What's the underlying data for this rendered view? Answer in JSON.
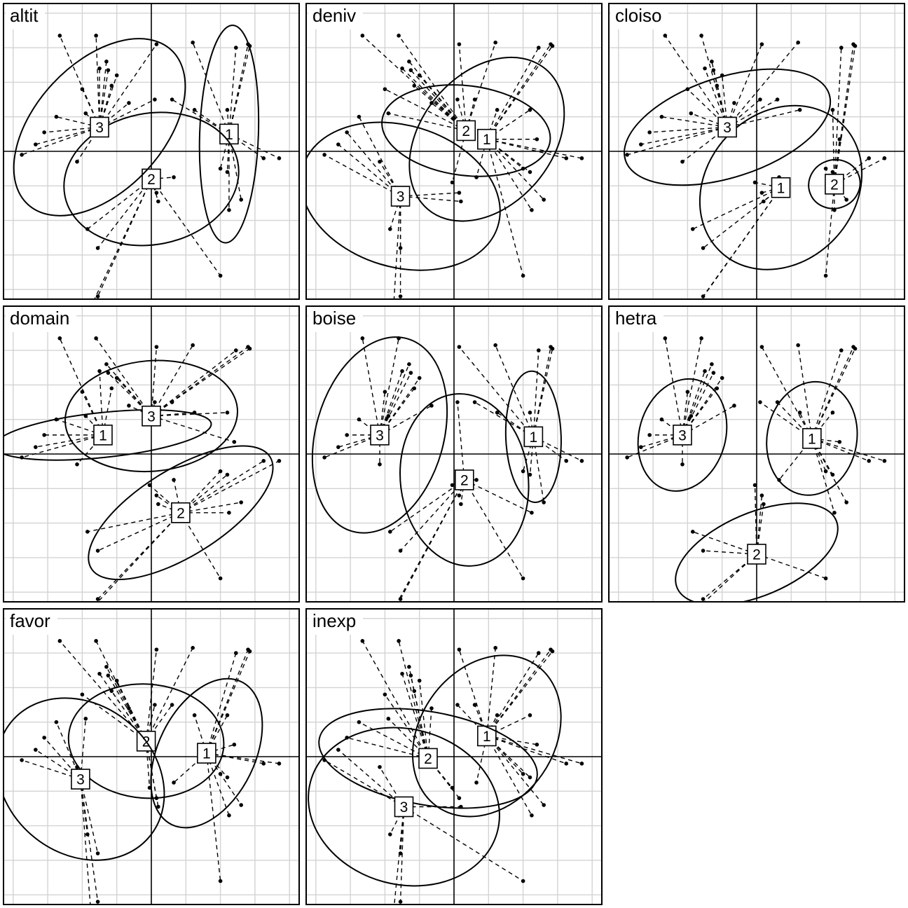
{
  "chart_data": {
    "type": "scatter",
    "x_range": [
      -8.6,
      8.6
    ],
    "y_range": [
      -8.6,
      8.6
    ],
    "grid": true,
    "grid_step": 2,
    "reference_lines": {
      "x": 0,
      "y": 0
    },
    "layout": "3x3 small multiples",
    "points": [
      [
        -3.2,
        6.7
      ],
      [
        -5.3,
        6.7
      ],
      [
        -2.6,
        5.2
      ],
      [
        -3,
        4.8
      ],
      [
        -2.5,
        4.7
      ],
      [
        -4,
        3.6
      ],
      [
        -2,
        4.4
      ],
      [
        2.4,
        6.3
      ],
      [
        0.3,
        6.2
      ],
      [
        4.9,
        6
      ],
      [
        5.6,
        6.2
      ],
      [
        5.7,
        6.1
      ],
      [
        -1.3,
        2.8
      ],
      [
        -2.3,
        3.8
      ],
      [
        -3.8,
        2.2
      ],
      [
        -5.5,
        2
      ],
      [
        -6.2,
        1.1
      ],
      [
        -6.7,
        0.4
      ],
      [
        -7.5,
        -0.2
      ],
      [
        -4.3,
        -0.6
      ],
      [
        0.2,
        3
      ],
      [
        1.2,
        3
      ],
      [
        2.5,
        2.4
      ],
      [
        4.4,
        2.4
      ],
      [
        4.8,
        0.7
      ],
      [
        4,
        -1
      ],
      [
        5.2,
        -2.8
      ],
      [
        4.5,
        -3.4
      ],
      [
        6.5,
        -0.4
      ],
      [
        7.4,
        -0.4
      ],
      [
        4.4,
        -1.2
      ],
      [
        -0.1,
        -1.8
      ],
      [
        1.3,
        -1.5
      ],
      [
        0.3,
        -2.4
      ],
      [
        0.4,
        -2.9
      ],
      [
        -3.7,
        -4.5
      ],
      [
        -3.1,
        -5.6
      ],
      [
        4,
        -7.2
      ],
      [
        -3.5,
        -9
      ],
      [
        -3.1,
        -8.4
      ]
    ],
    "panels": [
      {
        "title": "altit",
        "groups": [
          {
            "label": "1",
            "center": [
              4.5,
              1
            ],
            "ellipse": {
              "rx": 6.3,
              "ry": 1.7,
              "angle_deg": 88
            }
          },
          {
            "label": "2",
            "center": [
              0,
              -1.6
            ],
            "ellipse": {
              "rx": 5.1,
              "ry": 3.8,
              "angle_deg": 11
            }
          },
          {
            "label": "3",
            "center": [
              -3,
              1.4
            ],
            "ellipse": {
              "rx": 6.1,
              "ry": 3.7,
              "angle_deg": 47
            }
          }
        ]
      },
      {
        "title": "deniv",
        "groups": [
          {
            "label": "1",
            "center": [
              1.9,
              0.7
            ],
            "ellipse": {
              "rx": 5.3,
              "ry": 3.8,
              "angle_deg": 50
            }
          },
          {
            "label": "2",
            "center": [
              0.7,
              1.2
            ],
            "ellipse": {
              "rx": 4.9,
              "ry": 2.6,
              "angle_deg": -7
            }
          },
          {
            "label": "3",
            "center": [
              -3.1,
              -2.6
            ],
            "ellipse": {
              "rx": 5.9,
              "ry": 4.1,
              "angle_deg": -17
            }
          }
        ]
      },
      {
        "title": "cloiso",
        "groups": [
          {
            "label": "1",
            "center": [
              1.4,
              -2.1
            ],
            "ellipse": {
              "rx": 5.1,
              "ry": 4.3,
              "angle_deg": 47
            }
          },
          {
            "label": "2",
            "center": [
              4.5,
              -1.9
            ],
            "ellipse": {
              "rx": 1.5,
              "ry": 1.4,
              "angle_deg": 20
            }
          },
          {
            "label": "3",
            "center": [
              -1.7,
              1.4
            ],
            "ellipse": {
              "rx": 6.2,
              "ry": 2.9,
              "angle_deg": 18
            }
          }
        ]
      },
      {
        "title": "domain",
        "groups": [
          {
            "label": "1",
            "center": [
              -2.8,
              1.1
            ],
            "ellipse": {
              "rx": 6.3,
              "ry": 1.3,
              "angle_deg": 6
            }
          },
          {
            "label": "2",
            "center": [
              1.7,
              -3.4
            ],
            "ellipse": {
              "rx": 6.1,
              "ry": 2.5,
              "angle_deg": 32
            }
          },
          {
            "label": "3",
            "center": [
              0,
              2.2
            ],
            "ellipse": {
              "rx": 5,
              "ry": 3.2,
              "angle_deg": 5
            }
          }
        ]
      },
      {
        "title": "boise",
        "groups": [
          {
            "label": "1",
            "center": [
              4.6,
              1
            ],
            "ellipse": {
              "rx": 3.8,
              "ry": 1.6,
              "angle_deg": 92
            }
          },
          {
            "label": "2",
            "center": [
              0.6,
              -1.5
            ],
            "ellipse": {
              "rx": 5,
              "ry": 3.7,
              "angle_deg": 97
            }
          },
          {
            "label": "3",
            "center": [
              -4.3,
              1.1
            ],
            "ellipse": {
              "rx": 5.8,
              "ry": 3.7,
              "angle_deg": 74
            }
          }
        ]
      },
      {
        "title": "hetra",
        "groups": [
          {
            "label": "1",
            "center": [
              3.2,
              0.9
            ],
            "ellipse": {
              "rx": 3.3,
              "ry": 2.6,
              "angle_deg": 80
            }
          },
          {
            "label": "2",
            "center": [
              0,
              -5.8
            ],
            "ellipse": {
              "rx": 5,
              "ry": 2.4,
              "angle_deg": 23
            }
          },
          {
            "label": "3",
            "center": [
              -4.3,
              1.1
            ],
            "ellipse": {
              "rx": 3.3,
              "ry": 2.5,
              "angle_deg": 74
            }
          }
        ]
      },
      {
        "title": "favor",
        "groups": [
          {
            "label": "1",
            "center": [
              3.2,
              0.2
            ],
            "ellipse": {
              "rx": 4.6,
              "ry": 2.8,
              "angle_deg": 64
            }
          },
          {
            "label": "2",
            "center": [
              -0.3,
              0.9
            ],
            "ellipse": {
              "rx": 4.5,
              "ry": 3.3,
              "angle_deg": -4
            }
          },
          {
            "label": "3",
            "center": [
              -4.1,
              -1.3
            ],
            "ellipse": {
              "rx": 5.2,
              "ry": 4.3,
              "angle_deg": -40
            }
          }
        ]
      },
      {
        "title": "inexp",
        "groups": [
          {
            "label": "1",
            "center": [
              1.9,
              1.2
            ],
            "ellipse": {
              "rx": 5,
              "ry": 3.9,
              "angle_deg": 55
            }
          },
          {
            "label": "2",
            "center": [
              -1.5,
              -0.1
            ],
            "ellipse": {
              "rx": 6.4,
              "ry": 2.7,
              "angle_deg": -10
            }
          },
          {
            "label": "3",
            "center": [
              -2.9,
              -2.9
            ],
            "ellipse": {
              "rx": 5.6,
              "ry": 4.5,
              "angle_deg": -15
            }
          }
        ]
      }
    ]
  }
}
